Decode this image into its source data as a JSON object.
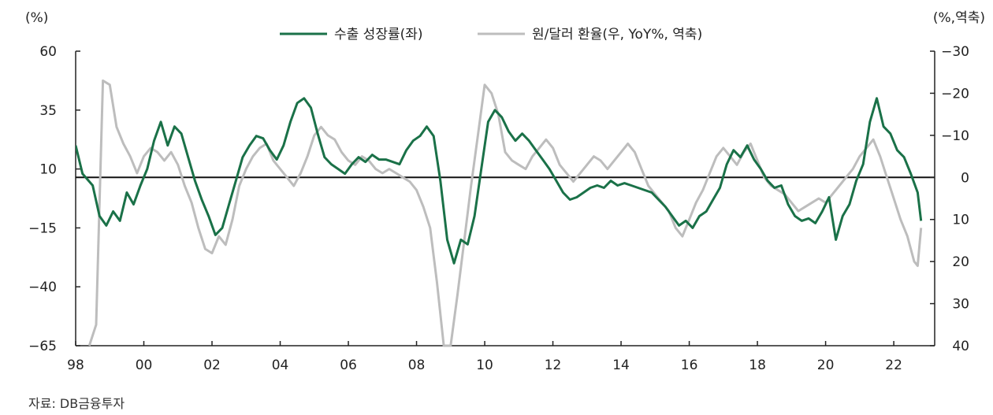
{
  "chart_data": {
    "type": "line",
    "left_unit": "(%)",
    "right_unit": "(%,역축)",
    "legend_position": "top-center",
    "grid": false,
    "source": "자료: DB금융투자",
    "x_tick_labels": [
      "98",
      "00",
      "02",
      "04",
      "06",
      "08",
      "10",
      "12",
      "14",
      "16",
      "18",
      "20",
      "22"
    ],
    "left_axis": {
      "ylim": [
        -65,
        60
      ],
      "ticks": [
        "60",
        "35",
        "10",
        "−15",
        "−40",
        "−65"
      ],
      "tick_values": [
        60,
        35,
        10,
        -15,
        -40,
        -65
      ]
    },
    "right_axis": {
      "ylim": [
        40,
        -30
      ],
      "inverted": true,
      "ticks": [
        "−30",
        "−20",
        "−10",
        "0",
        "10",
        "20",
        "30",
        "40"
      ],
      "tick_values": [
        -30,
        -20,
        -10,
        0,
        10,
        20,
        30,
        40
      ]
    },
    "series": [
      {
        "name": "수출 성장률(좌)",
        "axis": "left",
        "color": "#1a7148",
        "points": [
          [
            1998.0,
            20
          ],
          [
            1998.2,
            8
          ],
          [
            1998.5,
            3
          ],
          [
            1998.7,
            -10
          ],
          [
            1998.9,
            -14
          ],
          [
            1999.1,
            -8
          ],
          [
            1999.3,
            -12
          ],
          [
            1999.5,
            0
          ],
          [
            1999.7,
            -5
          ],
          [
            1999.9,
            3
          ],
          [
            2000.1,
            10
          ],
          [
            2000.3,
            22
          ],
          [
            2000.5,
            30
          ],
          [
            2000.7,
            20
          ],
          [
            2000.9,
            28
          ],
          [
            2001.1,
            25
          ],
          [
            2001.3,
            15
          ],
          [
            2001.5,
            5
          ],
          [
            2001.7,
            -3
          ],
          [
            2001.9,
            -10
          ],
          [
            2002.1,
            -18
          ],
          [
            2002.3,
            -15
          ],
          [
            2002.5,
            -5
          ],
          [
            2002.7,
            5
          ],
          [
            2002.9,
            15
          ],
          [
            2003.1,
            20
          ],
          [
            2003.3,
            24
          ],
          [
            2003.5,
            23
          ],
          [
            2003.7,
            18
          ],
          [
            2003.9,
            14
          ],
          [
            2004.1,
            20
          ],
          [
            2004.3,
            30
          ],
          [
            2004.5,
            38
          ],
          [
            2004.7,
            40
          ],
          [
            2004.9,
            36
          ],
          [
            2005.1,
            25
          ],
          [
            2005.3,
            15
          ],
          [
            2005.5,
            12
          ],
          [
            2005.7,
            10
          ],
          [
            2005.9,
            8
          ],
          [
            2006.1,
            12
          ],
          [
            2006.3,
            15
          ],
          [
            2006.5,
            13
          ],
          [
            2006.7,
            16
          ],
          [
            2006.9,
            14
          ],
          [
            2007.1,
            14
          ],
          [
            2007.3,
            13
          ],
          [
            2007.5,
            12
          ],
          [
            2007.7,
            18
          ],
          [
            2007.9,
            22
          ],
          [
            2008.1,
            24
          ],
          [
            2008.3,
            28
          ],
          [
            2008.5,
            24
          ],
          [
            2008.7,
            5
          ],
          [
            2008.9,
            -20
          ],
          [
            2009.1,
            -30
          ],
          [
            2009.3,
            -20
          ],
          [
            2009.5,
            -22
          ],
          [
            2009.7,
            -10
          ],
          [
            2009.9,
            10
          ],
          [
            2010.1,
            30
          ],
          [
            2010.3,
            35
          ],
          [
            2010.5,
            32
          ],
          [
            2010.7,
            26
          ],
          [
            2010.9,
            22
          ],
          [
            2011.1,
            25
          ],
          [
            2011.3,
            22
          ],
          [
            2011.5,
            18
          ],
          [
            2011.7,
            14
          ],
          [
            2011.9,
            10
          ],
          [
            2012.1,
            5
          ],
          [
            2012.3,
            0
          ],
          [
            2012.5,
            -3
          ],
          [
            2012.7,
            -2
          ],
          [
            2012.9,
            0
          ],
          [
            2013.1,
            2
          ],
          [
            2013.3,
            3
          ],
          [
            2013.5,
            2
          ],
          [
            2013.7,
            5
          ],
          [
            2013.9,
            3
          ],
          [
            2014.1,
            4
          ],
          [
            2014.3,
            3
          ],
          [
            2014.5,
            2
          ],
          [
            2014.7,
            1
          ],
          [
            2014.9,
            0
          ],
          [
            2015.1,
            -3
          ],
          [
            2015.3,
            -6
          ],
          [
            2015.5,
            -10
          ],
          [
            2015.7,
            -14
          ],
          [
            2015.9,
            -12
          ],
          [
            2016.1,
            -15
          ],
          [
            2016.3,
            -10
          ],
          [
            2016.5,
            -8
          ],
          [
            2016.7,
            -3
          ],
          [
            2016.9,
            2
          ],
          [
            2017.1,
            12
          ],
          [
            2017.3,
            18
          ],
          [
            2017.5,
            15
          ],
          [
            2017.7,
            20
          ],
          [
            2017.9,
            14
          ],
          [
            2018.1,
            10
          ],
          [
            2018.3,
            5
          ],
          [
            2018.5,
            2
          ],
          [
            2018.7,
            3
          ],
          [
            2018.9,
            -5
          ],
          [
            2019.1,
            -10
          ],
          [
            2019.3,
            -12
          ],
          [
            2019.5,
            -11
          ],
          [
            2019.7,
            -13
          ],
          [
            2019.9,
            -8
          ],
          [
            2020.1,
            -2
          ],
          [
            2020.3,
            -20
          ],
          [
            2020.5,
            -10
          ],
          [
            2020.7,
            -5
          ],
          [
            2020.9,
            5
          ],
          [
            2021.1,
            12
          ],
          [
            2021.3,
            30
          ],
          [
            2021.5,
            40
          ],
          [
            2021.7,
            28
          ],
          [
            2021.9,
            25
          ],
          [
            2022.1,
            18
          ],
          [
            2022.3,
            15
          ],
          [
            2022.5,
            8
          ],
          [
            2022.7,
            0
          ],
          [
            2022.8,
            -12
          ]
        ]
      },
      {
        "name": "원/달러 환율(우, YoY%, 역축)",
        "axis": "right",
        "color": "#bdbdbd",
        "points": [
          [
            1998.4,
            40
          ],
          [
            1998.6,
            35
          ],
          [
            1998.8,
            -23
          ],
          [
            1999.0,
            -22
          ],
          [
            1999.2,
            -12
          ],
          [
            1999.4,
            -8
          ],
          [
            1999.6,
            -5
          ],
          [
            1999.8,
            -1
          ],
          [
            2000.0,
            -5
          ],
          [
            2000.2,
            -7
          ],
          [
            2000.4,
            -6
          ],
          [
            2000.6,
            -4
          ],
          [
            2000.8,
            -6
          ],
          [
            2001.0,
            -3
          ],
          [
            2001.2,
            2
          ],
          [
            2001.4,
            6
          ],
          [
            2001.6,
            12
          ],
          [
            2001.8,
            17
          ],
          [
            2002.0,
            18
          ],
          [
            2002.2,
            14
          ],
          [
            2002.4,
            16
          ],
          [
            2002.6,
            10
          ],
          [
            2002.8,
            2
          ],
          [
            2003.0,
            -2
          ],
          [
            2003.2,
            -5
          ],
          [
            2003.4,
            -7
          ],
          [
            2003.6,
            -8
          ],
          [
            2003.8,
            -4
          ],
          [
            2004.0,
            -2
          ],
          [
            2004.2,
            0
          ],
          [
            2004.4,
            2
          ],
          [
            2004.6,
            -1
          ],
          [
            2004.8,
            -5
          ],
          [
            2005.0,
            -10
          ],
          [
            2005.2,
            -12
          ],
          [
            2005.4,
            -10
          ],
          [
            2005.6,
            -9
          ],
          [
            2005.8,
            -6
          ],
          [
            2006.0,
            -4
          ],
          [
            2006.2,
            -3
          ],
          [
            2006.4,
            -5
          ],
          [
            2006.6,
            -4
          ],
          [
            2006.8,
            -2
          ],
          [
            2007.0,
            -1
          ],
          [
            2007.2,
            -2
          ],
          [
            2007.4,
            -1
          ],
          [
            2007.6,
            0
          ],
          [
            2007.8,
            1
          ],
          [
            2008.0,
            3
          ],
          [
            2008.2,
            7
          ],
          [
            2008.4,
            12
          ],
          [
            2008.6,
            25
          ],
          [
            2008.8,
            40
          ],
          [
            2009.0,
            40
          ],
          [
            2009.2,
            28
          ],
          [
            2009.4,
            15
          ],
          [
            2009.6,
            2
          ],
          [
            2009.8,
            -10
          ],
          [
            2010.0,
            -22
          ],
          [
            2010.2,
            -20
          ],
          [
            2010.4,
            -15
          ],
          [
            2010.6,
            -6
          ],
          [
            2010.8,
            -4
          ],
          [
            2011.0,
            -3
          ],
          [
            2011.2,
            -2
          ],
          [
            2011.4,
            -5
          ],
          [
            2011.6,
            -7
          ],
          [
            2011.8,
            -9
          ],
          [
            2012.0,
            -7
          ],
          [
            2012.2,
            -3
          ],
          [
            2012.4,
            -1
          ],
          [
            2012.6,
            1
          ],
          [
            2012.8,
            -1
          ],
          [
            2013.0,
            -3
          ],
          [
            2013.2,
            -5
          ],
          [
            2013.4,
            -4
          ],
          [
            2013.6,
            -2
          ],
          [
            2013.8,
            -4
          ],
          [
            2014.0,
            -6
          ],
          [
            2014.2,
            -8
          ],
          [
            2014.4,
            -6
          ],
          [
            2014.6,
            -2
          ],
          [
            2014.8,
            2
          ],
          [
            2015.0,
            4
          ],
          [
            2015.2,
            6
          ],
          [
            2015.4,
            8
          ],
          [
            2015.6,
            12
          ],
          [
            2015.8,
            14
          ],
          [
            2016.0,
            10
          ],
          [
            2016.2,
            6
          ],
          [
            2016.4,
            3
          ],
          [
            2016.6,
            -1
          ],
          [
            2016.8,
            -5
          ],
          [
            2017.0,
            -7
          ],
          [
            2017.2,
            -5
          ],
          [
            2017.4,
            -3
          ],
          [
            2017.6,
            -6
          ],
          [
            2017.8,
            -8
          ],
          [
            2018.0,
            -4
          ],
          [
            2018.2,
            0
          ],
          [
            2018.4,
            2
          ],
          [
            2018.6,
            3
          ],
          [
            2018.8,
            4
          ],
          [
            2019.0,
            6
          ],
          [
            2019.2,
            8
          ],
          [
            2019.4,
            7
          ],
          [
            2019.6,
            6
          ],
          [
            2019.8,
            5
          ],
          [
            2020.0,
            6
          ],
          [
            2020.2,
            4
          ],
          [
            2020.4,
            2
          ],
          [
            2020.6,
            0
          ],
          [
            2020.8,
            -2
          ],
          [
            2021.0,
            -5
          ],
          [
            2021.2,
            -7
          ],
          [
            2021.4,
            -9
          ],
          [
            2021.6,
            -5
          ],
          [
            2021.8,
            0
          ],
          [
            2022.0,
            5
          ],
          [
            2022.2,
            10
          ],
          [
            2022.4,
            14
          ],
          [
            2022.6,
            20
          ],
          [
            2022.7,
            21
          ],
          [
            2022.8,
            12
          ]
        ]
      }
    ]
  }
}
